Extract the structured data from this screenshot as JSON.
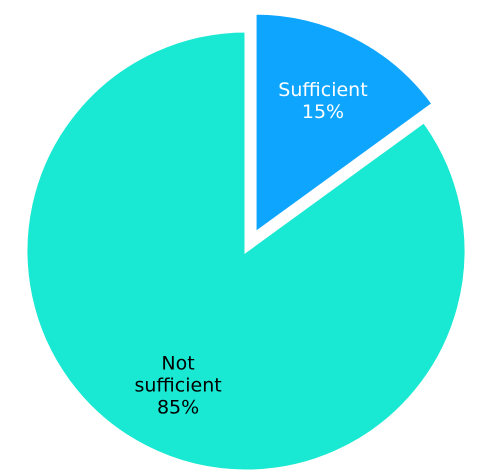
{
  "chart_data": {
    "type": "pie",
    "title": "",
    "categories": [
      "Sufficient",
      "Not sufficient"
    ],
    "values": [
      15,
      85
    ],
    "unit": "%",
    "slices": [
      {
        "name": "Sufficient",
        "value": 15,
        "label_lines": [
          "Sufficient",
          "15%"
        ],
        "color": "#0ea5ff",
        "label_color": "#ffffff",
        "exploded": true
      },
      {
        "name": "Not sufficient",
        "value": 85,
        "label_lines": [
          "Not",
          "sufficient",
          "85%"
        ],
        "color": "#19e8d2",
        "label_color": "#000000",
        "exploded": false
      }
    ],
    "start_angle": "12 o'clock, clockwise",
    "legend": "none",
    "slice_border_color": "#ffffff"
  }
}
